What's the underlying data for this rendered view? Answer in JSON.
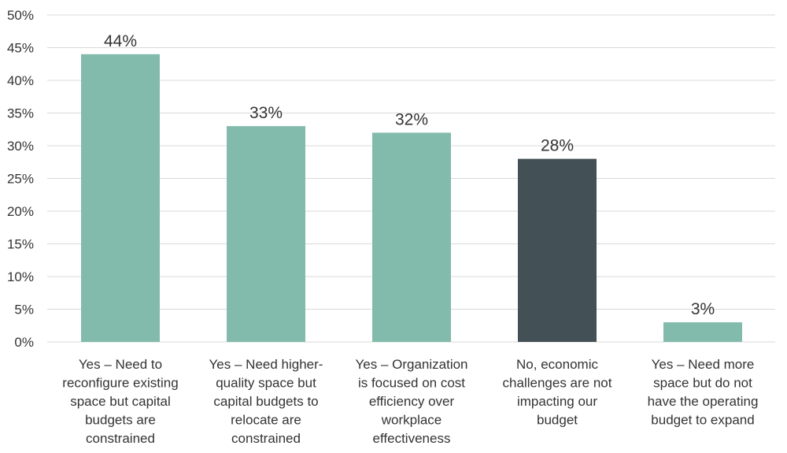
{
  "chart_data": {
    "type": "bar",
    "categories": [
      [
        "Yes – Need to",
        "reconfigure existing",
        "space but capital",
        "budgets are",
        "constrained"
      ],
      [
        "Yes – Need higher-",
        "quality space but",
        "capital budgets to",
        "relocate are",
        "constrained"
      ],
      [
        "Yes – Organization",
        "is focused on cost",
        "efficiency over",
        "workplace",
        "effectiveness"
      ],
      [
        "No, economic",
        "challenges are not",
        "impacting our",
        "budget"
      ],
      [
        "Yes – Need more",
        "space but do not",
        "have the operating",
        "budget to expand"
      ]
    ],
    "values": [
      44,
      33,
      32,
      28,
      3
    ],
    "value_labels": [
      "44%",
      "33%",
      "32%",
      "28%",
      "3%"
    ],
    "bar_colors": [
      "#82bbac",
      "#82bbac",
      "#82bbac",
      "#435156",
      "#82bbac"
    ],
    "yticks": [
      "0%",
      "5%",
      "10%",
      "15%",
      "20%",
      "25%",
      "30%",
      "35%",
      "40%",
      "45%",
      "50%"
    ],
    "ylim": [
      0,
      50
    ],
    "grid": true,
    "title": "",
    "xlabel": "",
    "ylabel": ""
  }
}
